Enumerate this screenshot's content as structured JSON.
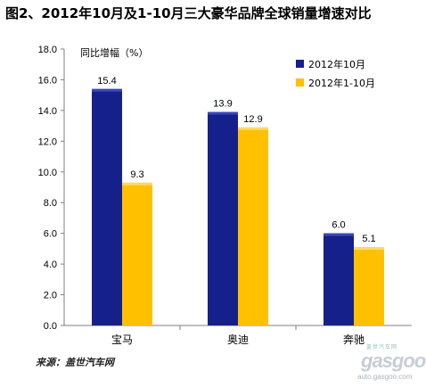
{
  "title": "图2、2012年10月及1-10月三大豪华品牌全球销量增速对比",
  "source": "来源：盖世汽车网",
  "watermark": {
    "top": "盖世汽车网",
    "main": "gasgoo",
    "url": "auto.gasgoo.com"
  },
  "colors": {
    "series1": "#16208a",
    "series2": "#ffc000",
    "axis": "#7f7f7f"
  },
  "chart_data": {
    "type": "bar",
    "categories": [
      "宝马",
      "奥迪",
      "奔驰"
    ],
    "series": [
      {
        "name": "2012年10月",
        "values": [
          15.4,
          13.9,
          6.0
        ]
      },
      {
        "name": "2012年1-10月",
        "values": [
          9.3,
          12.9,
          5.1
        ]
      }
    ],
    "value_labels": [
      [
        "15.4",
        "13.9",
        "6.0"
      ],
      [
        "9.3",
        "12.9",
        "5.1"
      ]
    ],
    "ylabel": "同比增幅（%）",
    "ylim": [
      0,
      18
    ],
    "yticks": [
      "0.0",
      "2.0",
      "4.0",
      "6.0",
      "8.0",
      "10.0",
      "12.0",
      "14.0",
      "16.0",
      "18.0"
    ],
    "legend_position": "top-right",
    "grid": false
  }
}
